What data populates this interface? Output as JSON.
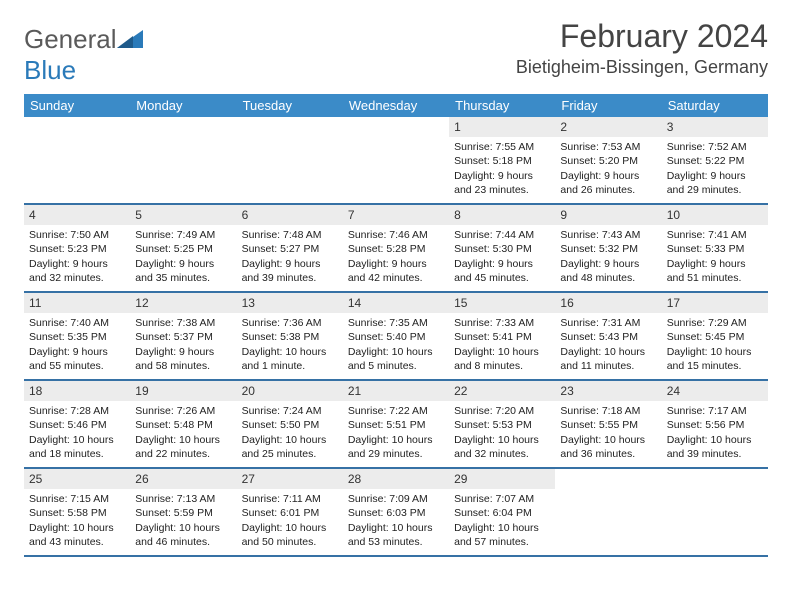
{
  "brand": {
    "general": "General",
    "blue": "Blue"
  },
  "title": {
    "month": "February 2024",
    "location": "Bietigheim-Bissingen, Germany"
  },
  "colors": {
    "header_bar": "#3b8bc8",
    "row_divider": "#3671a5",
    "daynum_bg": "#ececec"
  },
  "weekdays": [
    "Sunday",
    "Monday",
    "Tuesday",
    "Wednesday",
    "Thursday",
    "Friday",
    "Saturday"
  ],
  "weeks": [
    [
      {
        "n": "",
        "sr": "",
        "ss": "",
        "dl": ""
      },
      {
        "n": "",
        "sr": "",
        "ss": "",
        "dl": ""
      },
      {
        "n": "",
        "sr": "",
        "ss": "",
        "dl": ""
      },
      {
        "n": "",
        "sr": "",
        "ss": "",
        "dl": ""
      },
      {
        "n": "1",
        "sr": "Sunrise: 7:55 AM",
        "ss": "Sunset: 5:18 PM",
        "dl": "Daylight: 9 hours and 23 minutes."
      },
      {
        "n": "2",
        "sr": "Sunrise: 7:53 AM",
        "ss": "Sunset: 5:20 PM",
        "dl": "Daylight: 9 hours and 26 minutes."
      },
      {
        "n": "3",
        "sr": "Sunrise: 7:52 AM",
        "ss": "Sunset: 5:22 PM",
        "dl": "Daylight: 9 hours and 29 minutes."
      }
    ],
    [
      {
        "n": "4",
        "sr": "Sunrise: 7:50 AM",
        "ss": "Sunset: 5:23 PM",
        "dl": "Daylight: 9 hours and 32 minutes."
      },
      {
        "n": "5",
        "sr": "Sunrise: 7:49 AM",
        "ss": "Sunset: 5:25 PM",
        "dl": "Daylight: 9 hours and 35 minutes."
      },
      {
        "n": "6",
        "sr": "Sunrise: 7:48 AM",
        "ss": "Sunset: 5:27 PM",
        "dl": "Daylight: 9 hours and 39 minutes."
      },
      {
        "n": "7",
        "sr": "Sunrise: 7:46 AM",
        "ss": "Sunset: 5:28 PM",
        "dl": "Daylight: 9 hours and 42 minutes."
      },
      {
        "n": "8",
        "sr": "Sunrise: 7:44 AM",
        "ss": "Sunset: 5:30 PM",
        "dl": "Daylight: 9 hours and 45 minutes."
      },
      {
        "n": "9",
        "sr": "Sunrise: 7:43 AM",
        "ss": "Sunset: 5:32 PM",
        "dl": "Daylight: 9 hours and 48 minutes."
      },
      {
        "n": "10",
        "sr": "Sunrise: 7:41 AM",
        "ss": "Sunset: 5:33 PM",
        "dl": "Daylight: 9 hours and 51 minutes."
      }
    ],
    [
      {
        "n": "11",
        "sr": "Sunrise: 7:40 AM",
        "ss": "Sunset: 5:35 PM",
        "dl": "Daylight: 9 hours and 55 minutes."
      },
      {
        "n": "12",
        "sr": "Sunrise: 7:38 AM",
        "ss": "Sunset: 5:37 PM",
        "dl": "Daylight: 9 hours and 58 minutes."
      },
      {
        "n": "13",
        "sr": "Sunrise: 7:36 AM",
        "ss": "Sunset: 5:38 PM",
        "dl": "Daylight: 10 hours and 1 minute."
      },
      {
        "n": "14",
        "sr": "Sunrise: 7:35 AM",
        "ss": "Sunset: 5:40 PM",
        "dl": "Daylight: 10 hours and 5 minutes."
      },
      {
        "n": "15",
        "sr": "Sunrise: 7:33 AM",
        "ss": "Sunset: 5:41 PM",
        "dl": "Daylight: 10 hours and 8 minutes."
      },
      {
        "n": "16",
        "sr": "Sunrise: 7:31 AM",
        "ss": "Sunset: 5:43 PM",
        "dl": "Daylight: 10 hours and 11 minutes."
      },
      {
        "n": "17",
        "sr": "Sunrise: 7:29 AM",
        "ss": "Sunset: 5:45 PM",
        "dl": "Daylight: 10 hours and 15 minutes."
      }
    ],
    [
      {
        "n": "18",
        "sr": "Sunrise: 7:28 AM",
        "ss": "Sunset: 5:46 PM",
        "dl": "Daylight: 10 hours and 18 minutes."
      },
      {
        "n": "19",
        "sr": "Sunrise: 7:26 AM",
        "ss": "Sunset: 5:48 PM",
        "dl": "Daylight: 10 hours and 22 minutes."
      },
      {
        "n": "20",
        "sr": "Sunrise: 7:24 AM",
        "ss": "Sunset: 5:50 PM",
        "dl": "Daylight: 10 hours and 25 minutes."
      },
      {
        "n": "21",
        "sr": "Sunrise: 7:22 AM",
        "ss": "Sunset: 5:51 PM",
        "dl": "Daylight: 10 hours and 29 minutes."
      },
      {
        "n": "22",
        "sr": "Sunrise: 7:20 AM",
        "ss": "Sunset: 5:53 PM",
        "dl": "Daylight: 10 hours and 32 minutes."
      },
      {
        "n": "23",
        "sr": "Sunrise: 7:18 AM",
        "ss": "Sunset: 5:55 PM",
        "dl": "Daylight: 10 hours and 36 minutes."
      },
      {
        "n": "24",
        "sr": "Sunrise: 7:17 AM",
        "ss": "Sunset: 5:56 PM",
        "dl": "Daylight: 10 hours and 39 minutes."
      }
    ],
    [
      {
        "n": "25",
        "sr": "Sunrise: 7:15 AM",
        "ss": "Sunset: 5:58 PM",
        "dl": "Daylight: 10 hours and 43 minutes."
      },
      {
        "n": "26",
        "sr": "Sunrise: 7:13 AM",
        "ss": "Sunset: 5:59 PM",
        "dl": "Daylight: 10 hours and 46 minutes."
      },
      {
        "n": "27",
        "sr": "Sunrise: 7:11 AM",
        "ss": "Sunset: 6:01 PM",
        "dl": "Daylight: 10 hours and 50 minutes."
      },
      {
        "n": "28",
        "sr": "Sunrise: 7:09 AM",
        "ss": "Sunset: 6:03 PM",
        "dl": "Daylight: 10 hours and 53 minutes."
      },
      {
        "n": "29",
        "sr": "Sunrise: 7:07 AM",
        "ss": "Sunset: 6:04 PM",
        "dl": "Daylight: 10 hours and 57 minutes."
      },
      {
        "n": "",
        "sr": "",
        "ss": "",
        "dl": ""
      },
      {
        "n": "",
        "sr": "",
        "ss": "",
        "dl": ""
      }
    ]
  ]
}
